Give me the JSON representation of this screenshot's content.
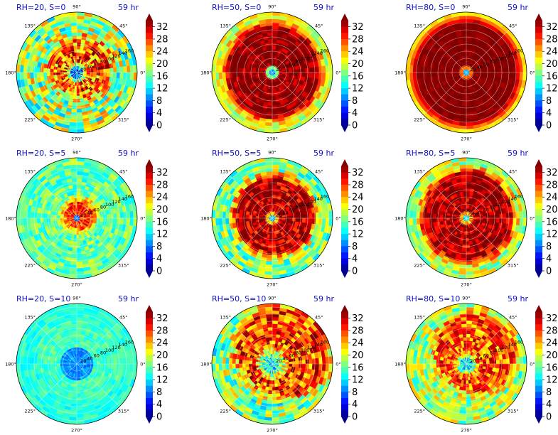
{
  "figure": {
    "colorbar": {
      "ticks": [
        0,
        4,
        8,
        12,
        16,
        20,
        24,
        28,
        32
      ],
      "range": [
        0,
        34
      ],
      "extend": "both",
      "colormap": "jet"
    },
    "angle_ticks": [
      "0°",
      "45°",
      "90°",
      "135°",
      "180°",
      "225°",
      "270°",
      "315°"
    ],
    "radial_ticks": [
      "20",
      "40",
      "60",
      "80",
      "100",
      "120",
      "140",
      "160"
    ],
    "title_color": "#1010c8",
    "time_label": "59 hr"
  },
  "chart_data": [
    {
      "type": "heatmap",
      "title": "RH=20, S=0",
      "time": "59 hr",
      "core_radius": 0.05,
      "ring_inner": 0.2,
      "ring_outer": 0.45,
      "outer_value": 18,
      "ring_value": 27,
      "core_value": 6,
      "asymmetry": 0.3,
      "noise": 8
    },
    {
      "type": "heatmap",
      "title": "RH=50, S=0",
      "time": "59 hr",
      "core_radius": 0.07,
      "ring_inner": 0.12,
      "ring_outer": 0.72,
      "outer_value": 20,
      "ring_value": 34,
      "core_value": 10,
      "asymmetry": 0.05,
      "noise": 4
    },
    {
      "type": "heatmap",
      "title": "RH=80, S=0",
      "time": "59 hr",
      "core_radius": 0.05,
      "ring_inner": 0.1,
      "ring_outer": 0.82,
      "outer_value": 21,
      "ring_value": 34,
      "core_value": 10,
      "asymmetry": 0.0,
      "noise": 1.5
    },
    {
      "type": "heatmap",
      "title": "RH=20, S=5",
      "time": "59 hr",
      "core_radius": 0.05,
      "ring_inner": 0.08,
      "ring_outer": 0.2,
      "outer_value": 16,
      "ring_value": 28,
      "core_value": 8,
      "asymmetry": 0.2,
      "noise": 4
    },
    {
      "type": "heatmap",
      "title": "RH=50, S=5",
      "time": "59 hr",
      "core_radius": 0.06,
      "ring_inner": 0.1,
      "ring_outer": 0.6,
      "outer_value": 17,
      "ring_value": 33,
      "core_value": 12,
      "asymmetry": 0.15,
      "noise": 6
    },
    {
      "type": "heatmap",
      "title": "RH=80, S=5",
      "time": "59 hr",
      "core_radius": 0.06,
      "ring_inner": 0.1,
      "ring_outer": 0.7,
      "outer_value": 19,
      "ring_value": 33,
      "core_value": 12,
      "asymmetry": 0.1,
      "noise": 5
    },
    {
      "type": "heatmap",
      "title": "RH=20, S=10",
      "time": "59 hr",
      "core_radius": 0.3,
      "ring_inner": 0.3,
      "ring_outer": 0.6,
      "outer_value": 14,
      "ring_value": 15,
      "core_value": 9,
      "asymmetry": 0.4,
      "noise": 2
    },
    {
      "type": "heatmap",
      "title": "RH=50, S=10",
      "time": "59 hr",
      "core_radius": 0.1,
      "ring_inner": 0.3,
      "ring_outer": 0.7,
      "outer_value": 17,
      "ring_value": 28,
      "core_value": 12,
      "asymmetry": 0.8,
      "noise": 7
    },
    {
      "type": "heatmap",
      "title": "RH=80, S=10",
      "time": "59 hr",
      "core_radius": 0.1,
      "ring_inner": 0.2,
      "ring_outer": 0.6,
      "outer_value": 18,
      "ring_value": 27,
      "core_value": 12,
      "asymmetry": 0.7,
      "noise": 6
    }
  ]
}
